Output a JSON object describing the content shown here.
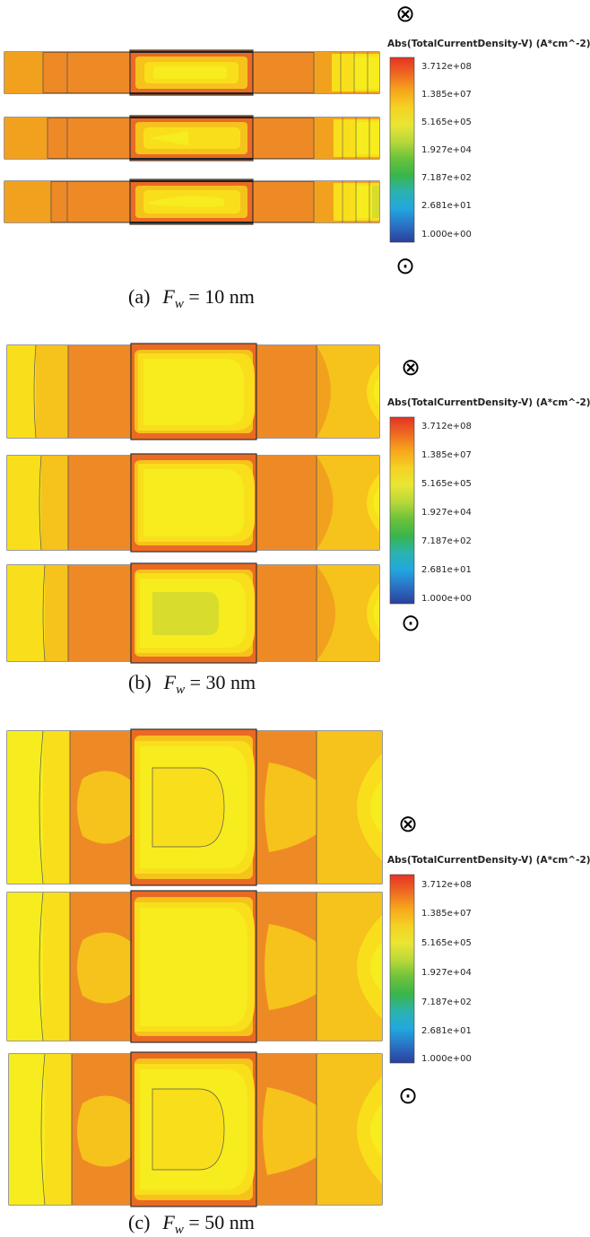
{
  "legend": {
    "title": "Abs(TotalCurrentDensity-V) (A*cm^-2)",
    "ticks": [
      "3.712e+08",
      "1.385e+07",
      "5.165e+05",
      "1.927e+04",
      "7.187e+02",
      "2.681e+01",
      "1.000e+00"
    ]
  },
  "colors": {
    "light_yellow": "#f7ec1e",
    "yellow": "#f9df1b",
    "pale_orange": "#f6c21c",
    "orange": "#f2a11e",
    "dark_orange": "#ee8a25",
    "red_orange": "#ea6a24",
    "green_yellow": "#d8dc2c",
    "outline": "#333333"
  },
  "colorbar_stops": [
    "#e53224",
    "#ee6a22",
    "#f7a81c",
    "#f4d224",
    "#e9e633",
    "#b9d83a",
    "#6cc23b",
    "#3ab54a",
    "#2ab3b0",
    "#22a7df",
    "#2a72c4",
    "#2b3f9a"
  ],
  "symbols": {
    "into": "⊗",
    "out_of": "⊙"
  },
  "panels": [
    {
      "label": "(a)",
      "var_main": "F",
      "var_sub": "w",
      "value_text": " = 10 nm"
    },
    {
      "label": "(b)",
      "var_main": "F",
      "var_sub": "w",
      "value_text": " = 30 nm"
    },
    {
      "label": "(c)",
      "var_main": "F",
      "var_sub": "w",
      "value_text": " = 50 nm"
    }
  ]
}
